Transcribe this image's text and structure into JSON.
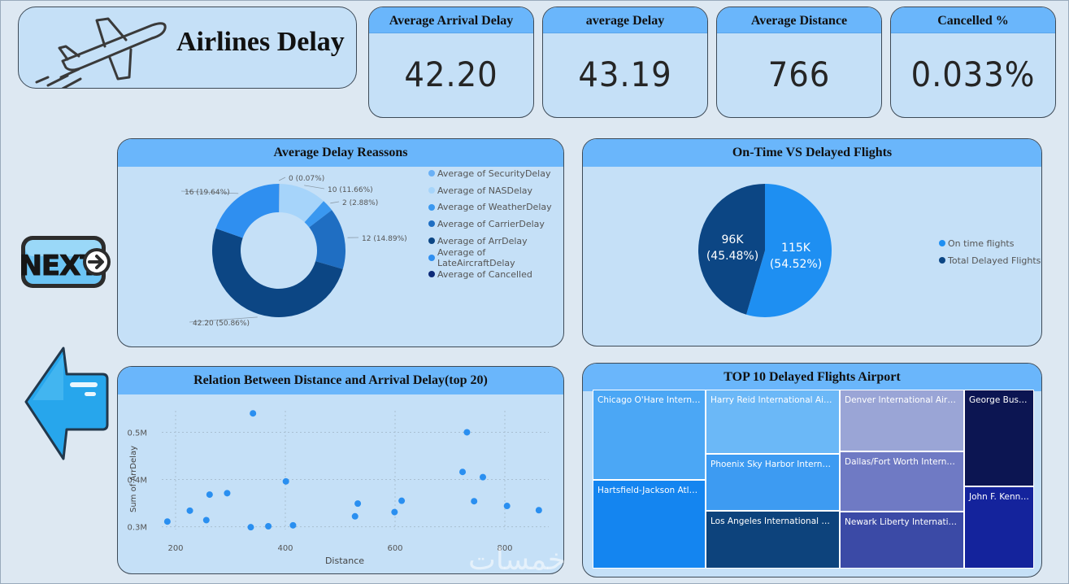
{
  "header": {
    "title": "Airlines Delay"
  },
  "kpis": [
    {
      "label": "Average Arrival Delay",
      "value": "42.20"
    },
    {
      "label": "average Delay",
      "value": "43.19"
    },
    {
      "label": "Average Distance",
      "value": "766"
    },
    {
      "label": "Cancelled %",
      "value": "0.033%"
    }
  ],
  "nav": {
    "next_label": "NEXT"
  },
  "colors": {
    "accent": "#6ab6fb",
    "card": "#c5e0f7",
    "page": "#dde8f2"
  },
  "chart_data": [
    {
      "type": "pie",
      "variant": "donut",
      "title": "Average Delay Reassons",
      "legend": [
        "Average of SecurityDelay",
        "Average of NASDelay",
        "Average of WeatherDelay",
        "Average of CarrierDelay",
        "Average of ArrDelay",
        "Average of LateAircraftDelay",
        "Average of Cancelled"
      ],
      "legend_colors": [
        "#6ab0f5",
        "#a6d4fa",
        "#3a98f0",
        "#1f6ec2",
        "#0c4684",
        "#2f8ff0",
        "#0d2a78"
      ],
      "slices": [
        {
          "name": "Average of Cancelled",
          "value": 0,
          "label": "0 (0.07%)",
          "color": "#0d2a78"
        },
        {
          "name": "Average of NASDelay",
          "value": 10,
          "label": "10 (11.66%)",
          "color": "#a6d4fa"
        },
        {
          "name": "Average of WeatherDelay",
          "value": 2,
          "label": "2 (2.88%)",
          "color": "#3a98f0"
        },
        {
          "name": "Average of CarrierDelay",
          "value": 12,
          "label": "12 (14.89%)",
          "color": "#1f6ec2"
        },
        {
          "name": "Average of ArrDelay",
          "value": 42.2,
          "label": "42.20 (50.86%)",
          "color": "#0c4684"
        },
        {
          "name": "Average of LateAircraftDelay",
          "value": 16,
          "label": "16 (19.64%)",
          "color": "#2f8ff0"
        }
      ],
      "percentages": [
        0.07,
        11.66,
        2.88,
        14.89,
        50.86,
        19.64
      ]
    },
    {
      "type": "pie",
      "title": "On-Time VS Delayed Flights",
      "slices": [
        {
          "name": "On time flights",
          "value": 115,
          "label": "115K",
          "pct": "(54.52%)",
          "percent": 54.52,
          "color": "#1e8ff2"
        },
        {
          "name": "Total Delayed Flights",
          "value": 96,
          "label": "96K",
          "pct": "(45.48%)",
          "percent": 45.48,
          "color": "#0c4684"
        }
      ]
    },
    {
      "type": "scatter",
      "title": "Relation Between Distance and Arrival Delay(top 20)",
      "xlabel": "Distance",
      "ylabel": "Sum of ArrDelay",
      "xlim": [
        160,
        880
      ],
      "ylim": [
        0.27,
        0.58
      ],
      "xticks": [
        200,
        400,
        600,
        800
      ],
      "xtick_labels": [
        "200",
        "400",
        "600",
        "800"
      ],
      "yticks": [
        0.3,
        0.4,
        0.5
      ],
      "ytick_labels": [
        "0.3M",
        "0.4M",
        "0.5M"
      ],
      "points": [
        [
          185,
          0.311
        ],
        [
          226,
          0.334
        ],
        [
          256,
          0.314
        ],
        [
          262,
          0.368
        ],
        [
          294,
          0.371
        ],
        [
          337,
          0.299
        ],
        [
          341,
          0.54
        ],
        [
          369,
          0.301
        ],
        [
          401,
          0.396
        ],
        [
          414,
          0.303
        ],
        [
          527,
          0.322
        ],
        [
          532,
          0.349
        ],
        [
          599,
          0.331
        ],
        [
          612,
          0.355
        ],
        [
          723,
          0.416
        ],
        [
          731,
          0.5
        ],
        [
          744,
          0.354
        ],
        [
          760,
          0.405
        ],
        [
          804,
          0.344
        ],
        [
          862,
          0.335
        ]
      ]
    },
    {
      "type": "treemap",
      "title": "TOP 10 Delayed Flights Airport",
      "items": [
        {
          "name": "Chicago O'Hare Internati...",
          "color": "#4ba7f5"
        },
        {
          "name": "Hartsfield-Jackson Atlant...",
          "color": "#1485f0"
        },
        {
          "name": "Harry Reid International Airport",
          "color": "#6bb8f7"
        },
        {
          "name": "Phoenix Sky Harbor Internatio...",
          "color": "#3d9bf2"
        },
        {
          "name": "Los Angeles International Airp...",
          "color": "#0d437c"
        },
        {
          "name": "Denver International Airport",
          "color": "#9aa5d6"
        },
        {
          "name": "Dallas/Fort Worth Internatio...",
          "color": "#6f7ac4"
        },
        {
          "name": "Newark Liberty International...",
          "color": "#3b4aa6"
        },
        {
          "name": "George Bush I...",
          "color": "#0c1552"
        },
        {
          "name": "John F. Kenne...",
          "color": "#14239c"
        }
      ]
    }
  ]
}
